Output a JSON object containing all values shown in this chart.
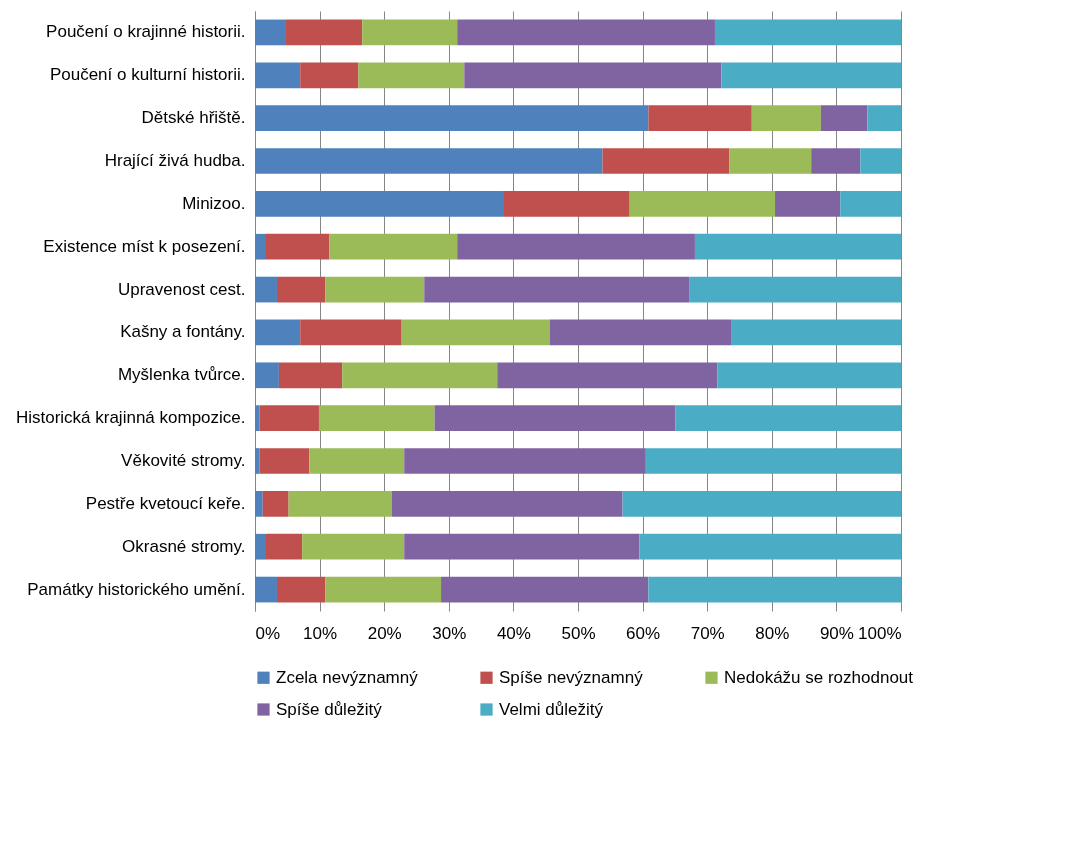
{
  "chart_data": {
    "type": "bar",
    "orientation": "horizontal",
    "stacked": true,
    "grid": "x",
    "legend": "bottom",
    "categories": [
      "Poučení o krajinné historii.",
      "Poučení o kulturní historii.",
      "Dětské hřiště.",
      "Hrající živá hudba.",
      "Minizoo.",
      "Existence míst k posezení.",
      "Upravenost cest.",
      "Kašny a fontány.",
      "Myšlenka tvůrce.",
      "Historická krajinná kompozice.",
      "Věkovité stromy.",
      "Pestře kvetoucí keře.",
      "Okrasné stromy.",
      "Památky historického umění."
    ],
    "series": [
      {
        "name": "Zcela nevýznamný",
        "color": "#4f81bd",
        "values": [
          4.8,
          7.0,
          60.9,
          53.8,
          38.4,
          1.7,
          3.4,
          7.0,
          3.7,
          0.7,
          0.7,
          1.2,
          1.7,
          3.4
        ]
      },
      {
        "name": "Spíše nevýznamný",
        "color": "#c0504d",
        "values": [
          11.8,
          9.0,
          16.0,
          19.6,
          19.6,
          9.8,
          7.5,
          15.7,
          9.8,
          9.2,
          7.7,
          4.0,
          5.6,
          7.5
        ]
      },
      {
        "name": "Nedokážu se rozhodnout",
        "color": "#9bbb59",
        "values": [
          14.7,
          16.4,
          10.7,
          12.7,
          22.5,
          19.8,
          15.3,
          22.9,
          24.0,
          17.9,
          14.7,
          16.0,
          15.8,
          17.9
        ]
      },
      {
        "name": "Spíše důležitý",
        "color": "#8064a2",
        "values": [
          39.9,
          39.8,
          7.2,
          7.6,
          10.1,
          36.8,
          41.0,
          28.2,
          34.1,
          37.3,
          37.4,
          35.7,
          36.4,
          32.1
        ]
      },
      {
        "name": "Velmi důležitý",
        "color": "#4bacc6",
        "values": [
          28.8,
          27.8,
          5.2,
          6.3,
          9.4,
          31.9,
          32.8,
          26.2,
          28.4,
          34.9,
          39.5,
          43.1,
          40.5,
          39.1
        ]
      }
    ],
    "xlim": [
      0,
      100
    ],
    "xticks": [
      {
        "value": 0,
        "label": "0%"
      },
      {
        "value": 10,
        "label": "10%"
      },
      {
        "value": 20,
        "label": "20%"
      },
      {
        "value": 30,
        "label": "30%"
      },
      {
        "value": 40,
        "label": "40%"
      },
      {
        "value": 50,
        "label": "50%"
      },
      {
        "value": 60,
        "label": "60%"
      },
      {
        "value": 70,
        "label": "70%"
      },
      {
        "value": 80,
        "label": "80%"
      },
      {
        "value": 90,
        "label": "90%"
      },
      {
        "value": 100,
        "label": "100%"
      }
    ]
  }
}
